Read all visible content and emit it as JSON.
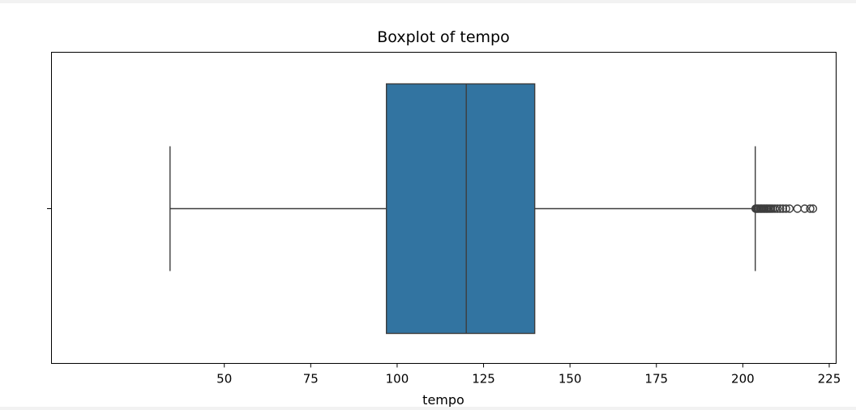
{
  "chart_data": {
    "type": "boxplot",
    "title": "Boxplot of tempo",
    "xlabel": "tempo",
    "ylabel": "",
    "orientation": "horizontal",
    "xlim": [
      0,
      227
    ],
    "xticks": [
      50,
      75,
      100,
      125,
      150,
      175,
      200,
      225
    ],
    "grid": false,
    "box": {
      "whisker_low": 34.3,
      "q1": 96.9,
      "median": 120.0,
      "q3": 139.8,
      "whisker_high": 203.6,
      "color": "#3274a1",
      "line_color": "#3d3d3d"
    },
    "outliers": [
      203.7,
      204.0,
      204.3,
      204.6,
      205.0,
      205.3,
      205.6,
      206.0,
      206.3,
      206.7,
      207.0,
      207.4,
      207.8,
      208.2,
      208.7,
      209.3,
      210.0,
      210.8,
      211.6,
      212.5,
      213.5,
      215.8,
      217.9,
      219.5,
      220.3
    ]
  }
}
